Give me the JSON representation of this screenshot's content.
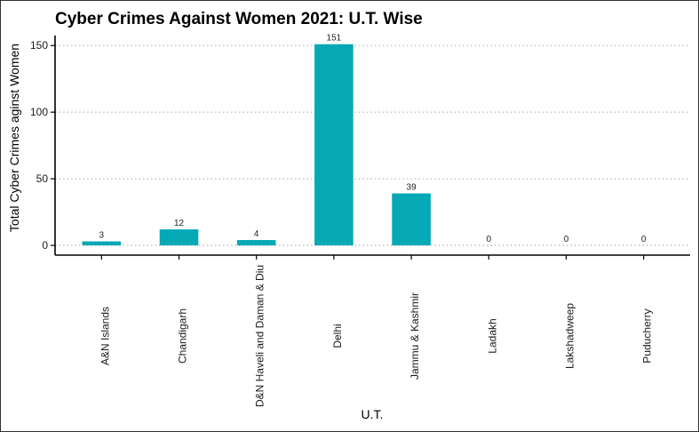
{
  "chart_data": {
    "type": "bar",
    "title": "Cyber Crimes Against Women 2021: U.T. Wise",
    "xlabel": "U.T.",
    "ylabel": "Total Cyber Crimes aginst Women",
    "categories": [
      "A&N Islands",
      "Chandigarh",
      "D&N Haveli and Daman & Diu",
      "Delhi",
      "Jammu & Kashmir",
      "Ladakh",
      "Lakshadweep",
      "Puducherry"
    ],
    "values": [
      3,
      12,
      4,
      151,
      39,
      0,
      0,
      0
    ],
    "ylim": [
      -7.3,
      157.5
    ],
    "yticks": [
      0,
      50,
      100,
      150
    ],
    "grid": "horizontal dotted",
    "legend": "none",
    "data_labels": true,
    "x_tick_label_orientation": "vertical",
    "bar_color": "#05A8B5",
    "grid_color": "#BDBDBD",
    "axis_color": "#000000"
  }
}
